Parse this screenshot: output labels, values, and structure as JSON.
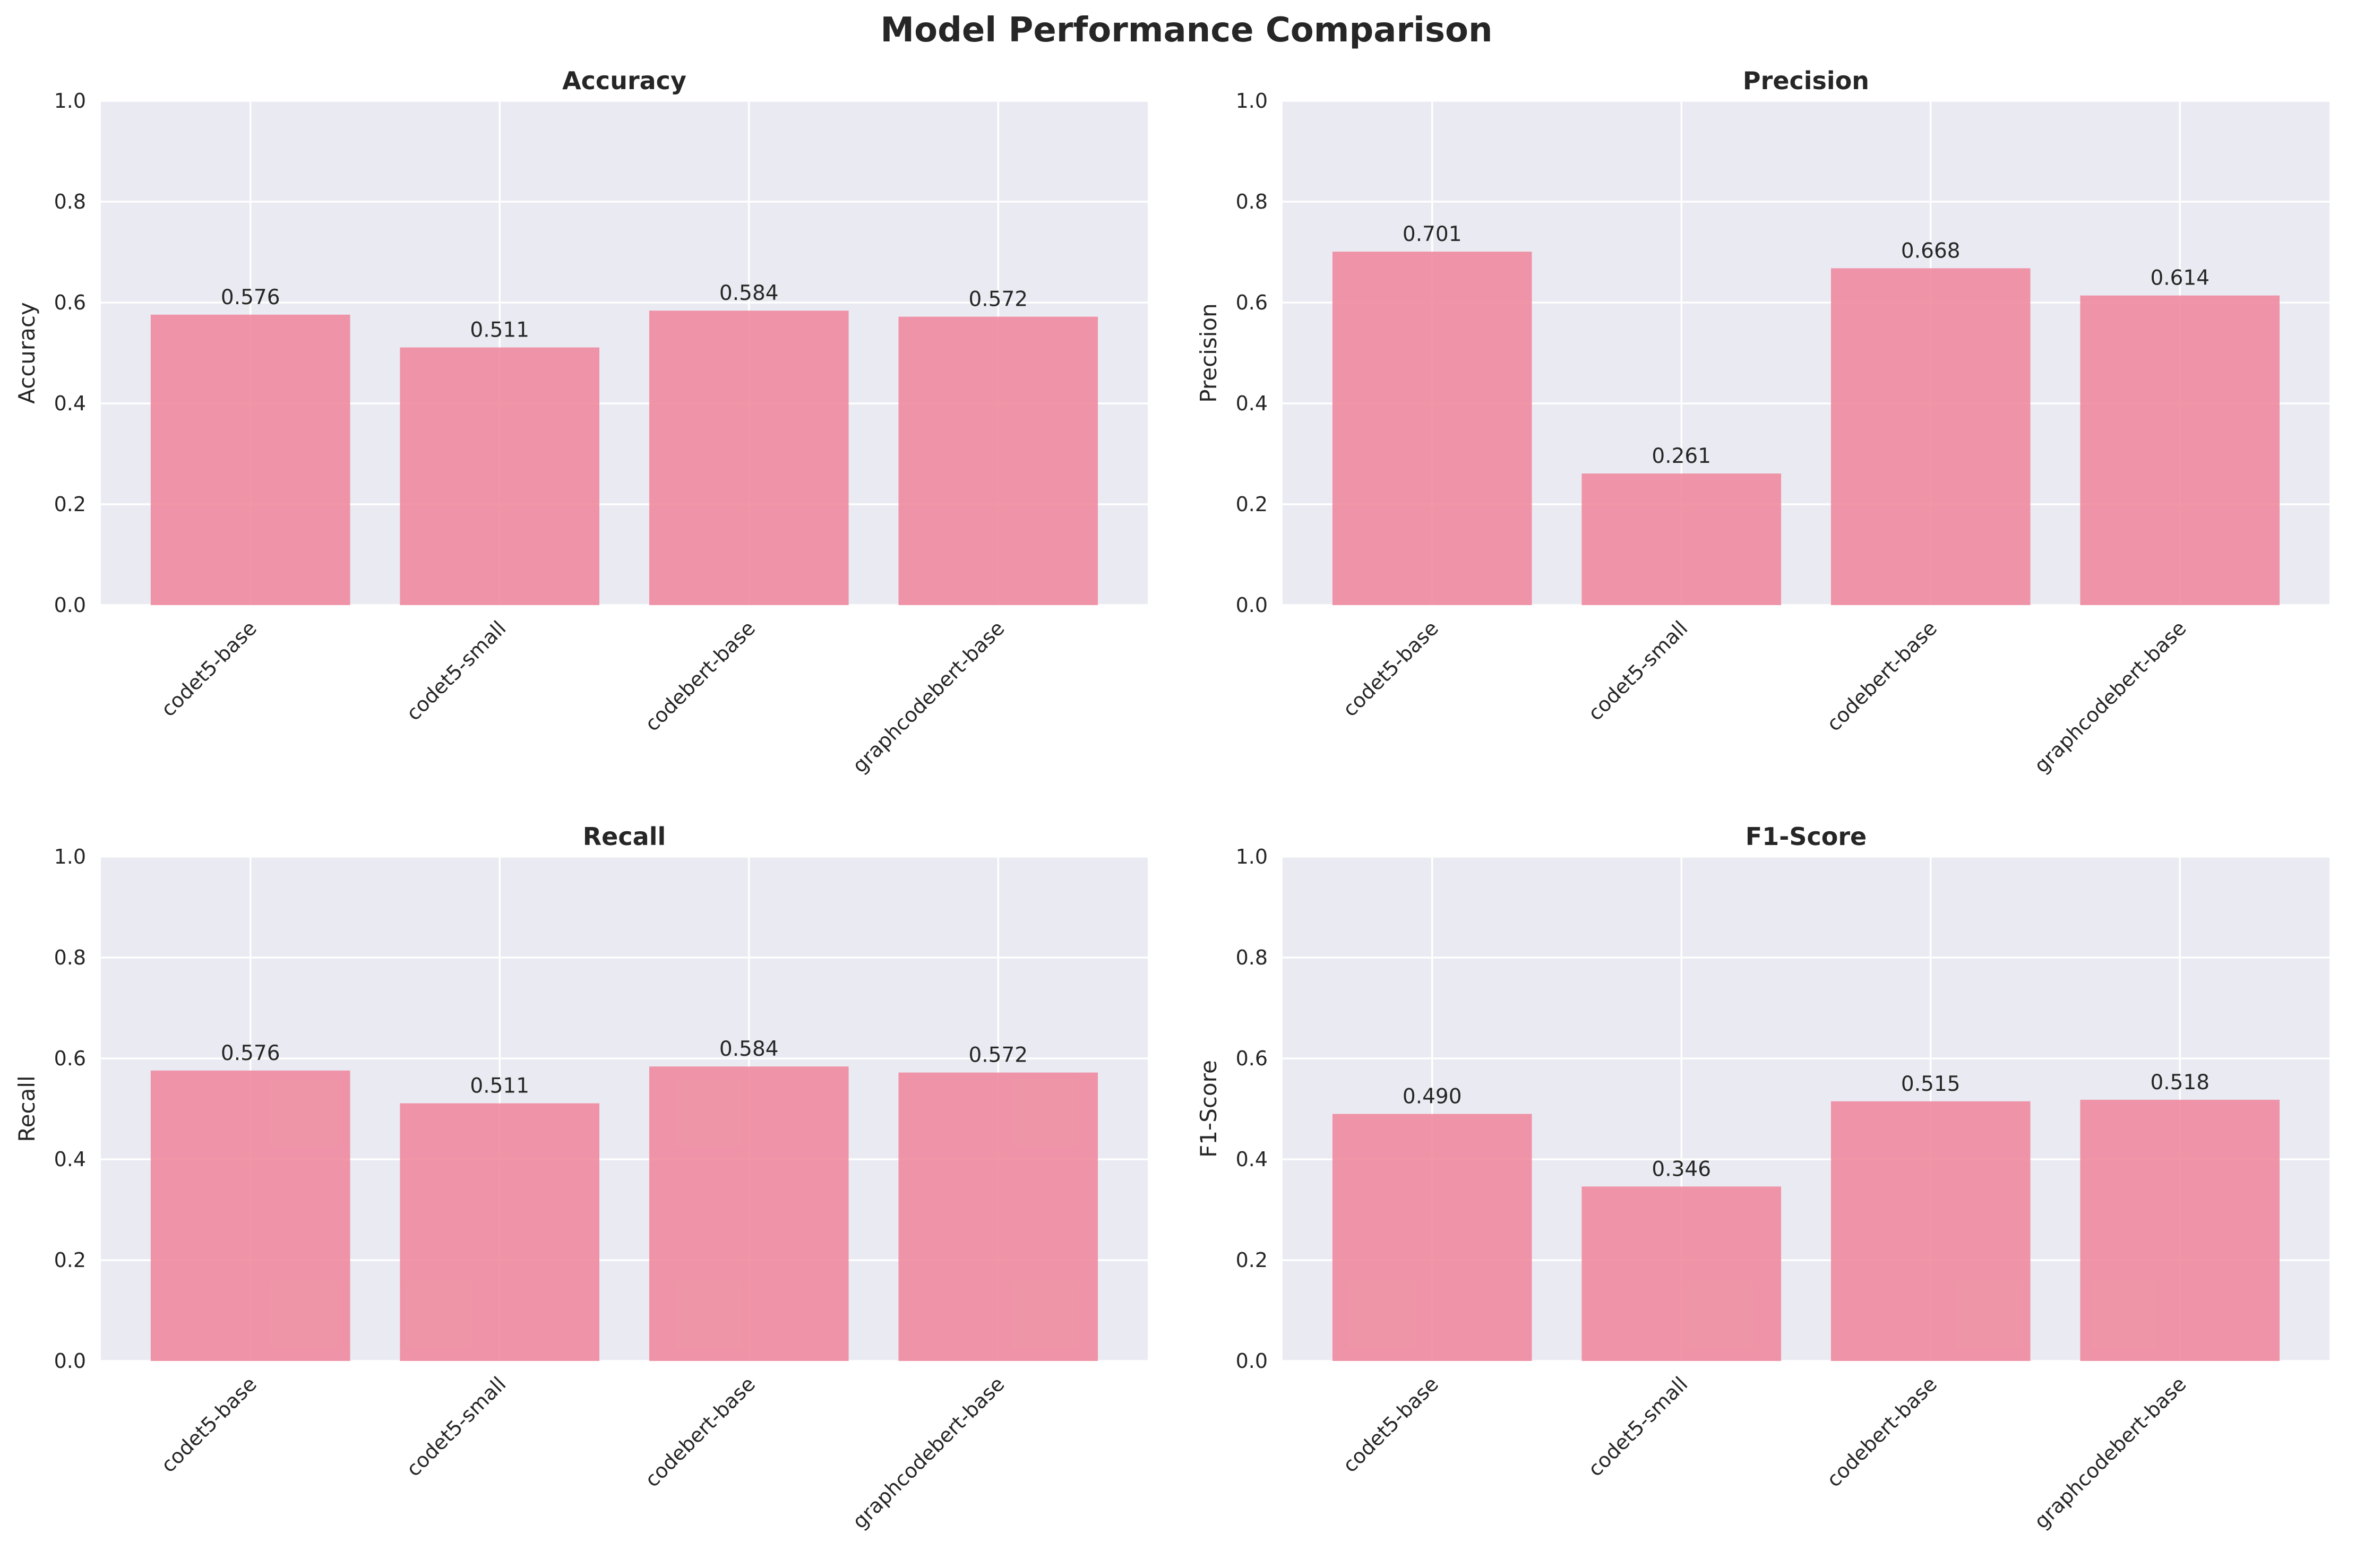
{
  "figure": {
    "suptitle": "Model Performance Comparison"
  },
  "colors": {
    "bar": "#f08ba0",
    "plot_background": "#eaeaf2",
    "grid": "#ffffff",
    "text": "#262626"
  },
  "chart_data": [
    {
      "type": "bar",
      "title": "Accuracy",
      "xlabel": "",
      "ylabel": "Accuracy",
      "categories": [
        "codet5-base",
        "codet5-small",
        "codebert-base",
        "graphcodebert-base"
      ],
      "values": [
        0.576,
        0.511,
        0.584,
        0.572
      ],
      "value_labels": [
        "0.576",
        "0.511",
        "0.584",
        "0.572"
      ],
      "ylim": [
        0,
        1.0
      ],
      "yticks": [
        "0.0",
        "0.2",
        "0.4",
        "0.6",
        "0.8",
        "1.0"
      ],
      "grid": true
    },
    {
      "type": "bar",
      "title": "Precision",
      "xlabel": "",
      "ylabel": "Precision",
      "categories": [
        "codet5-base",
        "codet5-small",
        "codebert-base",
        "graphcodebert-base"
      ],
      "values": [
        0.701,
        0.261,
        0.668,
        0.614
      ],
      "value_labels": [
        "0.701",
        "0.261",
        "0.668",
        "0.614"
      ],
      "ylim": [
        0,
        1.0
      ],
      "yticks": [
        "0.0",
        "0.2",
        "0.4",
        "0.6",
        "0.8",
        "1.0"
      ],
      "grid": true
    },
    {
      "type": "bar",
      "title": "Recall",
      "xlabel": "",
      "ylabel": "Recall",
      "categories": [
        "codet5-base",
        "codet5-small",
        "codebert-base",
        "graphcodebert-base"
      ],
      "values": [
        0.576,
        0.511,
        0.584,
        0.572
      ],
      "value_labels": [
        "0.576",
        "0.511",
        "0.584",
        "0.572"
      ],
      "ylim": [
        0,
        1.0
      ],
      "yticks": [
        "0.0",
        "0.2",
        "0.4",
        "0.6",
        "0.8",
        "1.0"
      ],
      "grid": true
    },
    {
      "type": "bar",
      "title": "F1-Score",
      "xlabel": "",
      "ylabel": "F1-Score",
      "categories": [
        "codet5-base",
        "codet5-small",
        "codebert-base",
        "graphcodebert-base"
      ],
      "values": [
        0.49,
        0.346,
        0.515,
        0.518
      ],
      "value_labels": [
        "0.490",
        "0.346",
        "0.515",
        "0.518"
      ],
      "ylim": [
        0,
        1.0
      ],
      "yticks": [
        "0.0",
        "0.2",
        "0.4",
        "0.6",
        "0.8",
        "1.0"
      ],
      "grid": true
    }
  ]
}
